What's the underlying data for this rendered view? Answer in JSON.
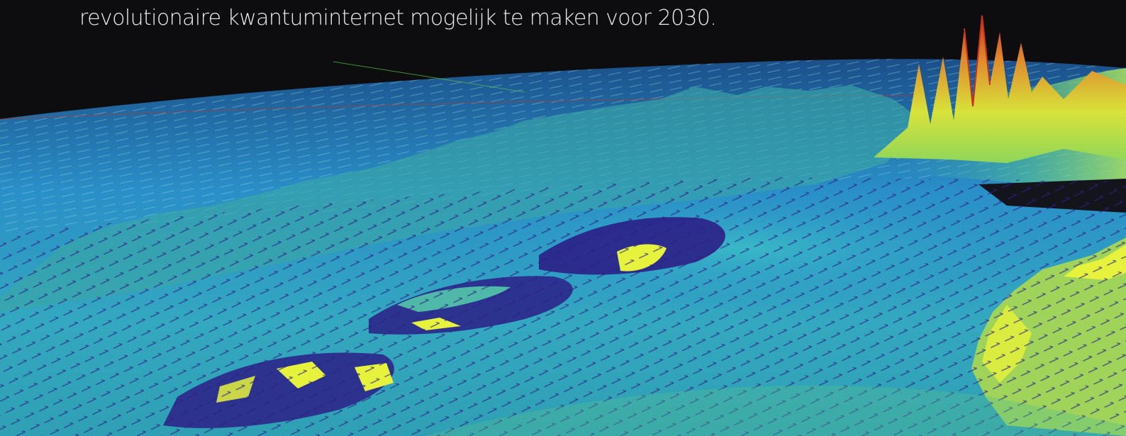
{
  "caption": {
    "text": "revolutionaire kwantuminternet mogelijk te maken voor 2030."
  },
  "visual": {
    "description": "3D surface visualization with vector field arrows",
    "palette": {
      "background": "#0d0d10",
      "deep": "#2b1f86",
      "mid_blue": "#2a8fc8",
      "teal": "#39b8b0",
      "green": "#5ec88c",
      "yellow": "#e6f23c",
      "orange": "#e08a2c",
      "red": "#c8321e"
    }
  }
}
